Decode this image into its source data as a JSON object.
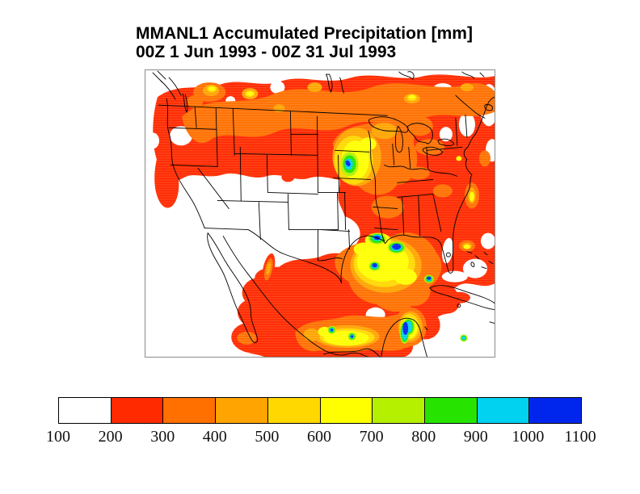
{
  "figure": {
    "title": "MMANL1 Accumulated Precipitation [mm]",
    "subtitle": "00Z 1 Jun 1993 - 00Z 31 Jul 1993"
  },
  "chart_data": {
    "type": "heatmap",
    "title": "MMANL1 Accumulated Precipitation [mm]",
    "subtitle": "00Z 1 Jun 1993 - 00Z 31 Jul 1993",
    "variable": "Accumulated precipitation",
    "units": "mm",
    "region": "North America: contiguous United States, southern Canada, Mexico, Gulf of Mexico, western Atlantic and Caribbean",
    "grid": "off",
    "legend_position": "bottom horizontal colorbar",
    "colorbar": {
      "orientation": "horizontal",
      "tick_labels": [
        "100",
        "200",
        "300",
        "400",
        "500",
        "600",
        "700",
        "800",
        "900",
        "1000",
        "1100"
      ],
      "levels_mm": [
        100,
        200,
        300,
        400,
        500,
        600,
        700,
        800,
        900,
        1000,
        1100
      ],
      "bin_colors": [
        "#FFFFFF",
        "#FF2A00",
        "#FF7000",
        "#FFA400",
        "#FFD800",
        "#FFFF00",
        "#B4F000",
        "#26E400",
        "#00D2F0",
        "#0026EE"
      ]
    },
    "notable_features": [
      {
        "location": "Iowa / upper Mississippi valley (1993 Great Flood region)",
        "value_mm": "900-1100 closed maximum"
      },
      {
        "location": "Louisiana Gulf coast and offshore Gulf of Mexico",
        "value_mm": "1000-1100 multiple cores"
      },
      {
        "location": "Yucatan peninsula and Bay of Campeche",
        "value_mm": "1000-1100 cores"
      },
      {
        "location": "Southern Mexico (Sierra Madre del Sur)",
        "value_mm": "900-1100 isolated cores"
      },
      {
        "location": "Southern Canada band and eastern United States",
        "value_mm": "200-400 widespread"
      },
      {
        "location": "Southwestern United States and Pacific coast",
        "value_mm": "below 100 (unshaded)"
      }
    ]
  }
}
